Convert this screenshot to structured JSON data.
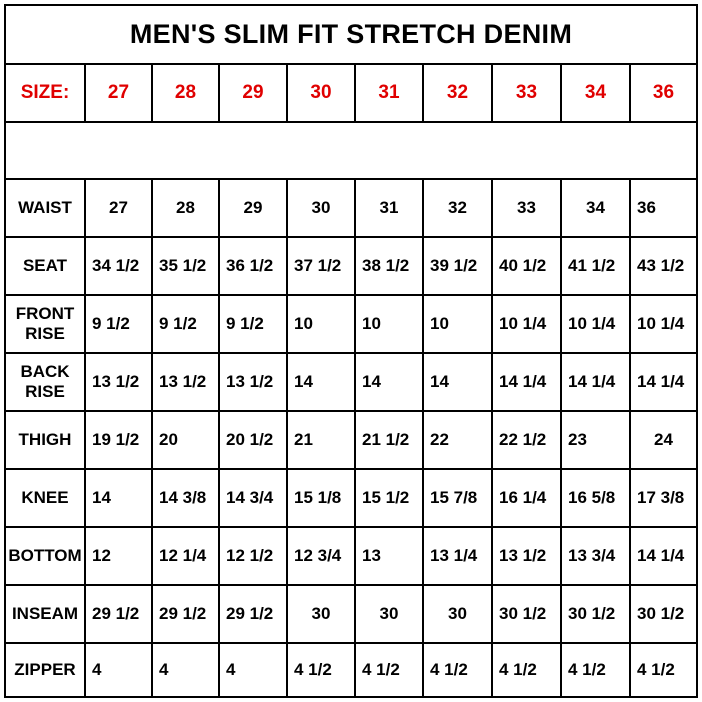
{
  "title": "MEN'S SLIM FIT STRETCH DENIM",
  "size_label": "SIZE:",
  "sizes": [
    "27",
    "28",
    "29",
    "30",
    "31",
    "32",
    "33",
    "34",
    "36"
  ],
  "rows": [
    {
      "label": "WAIST",
      "values": [
        "27",
        "28",
        "29",
        "30",
        "31",
        "32",
        "33",
        "34",
        "36"
      ]
    },
    {
      "label": "SEAT",
      "values": [
        "34 1/2",
        "35 1/2",
        "36 1/2",
        "37 1/2",
        "38 1/2",
        "39 1/2",
        "40 1/2",
        "41 1/2",
        "43 1/2"
      ]
    },
    {
      "label": "FRONT RISE",
      "values": [
        "9 1/2",
        "9 1/2",
        "9 1/2",
        "10",
        "10",
        "10",
        "10 1/4",
        "10 1/4",
        "10 1/4"
      ]
    },
    {
      "label": "BACK RISE",
      "values": [
        "13 1/2",
        "13 1/2",
        "13 1/2",
        "14",
        "14",
        "14",
        "14 1/4",
        "14 1/4",
        "14 1/4"
      ]
    },
    {
      "label": "THIGH",
      "values": [
        "19 1/2",
        "20",
        "20 1/2",
        "21",
        "21 1/2",
        "22",
        "22 1/2",
        "23",
        "24"
      ]
    },
    {
      "label": "KNEE",
      "values": [
        "14",
        "14 3/8",
        "14 3/4",
        "15 1/8",
        "15 1/2",
        "15 7/8",
        "16 1/4",
        "16 5/8",
        "17 3/8"
      ]
    },
    {
      "label": "BOTTOM",
      "values": [
        "12",
        "12 1/4",
        "12 1/2",
        "12 3/4",
        "13",
        "13 1/4",
        "13 1/2",
        "13 3/4",
        "14 1/4"
      ]
    },
    {
      "label": "INSEAM",
      "values": [
        "29 1/2",
        "29 1/2",
        "29 1/2",
        "30",
        "30",
        "30",
        "30 1/2",
        "30 1/2",
        "30 1/2"
      ]
    },
    {
      "label": "ZIPPER",
      "values": [
        "4",
        "4",
        "4",
        "4 1/2",
        "4 1/2",
        "4 1/2",
        "4 1/2",
        "4 1/2",
        "4 1/2"
      ]
    }
  ]
}
